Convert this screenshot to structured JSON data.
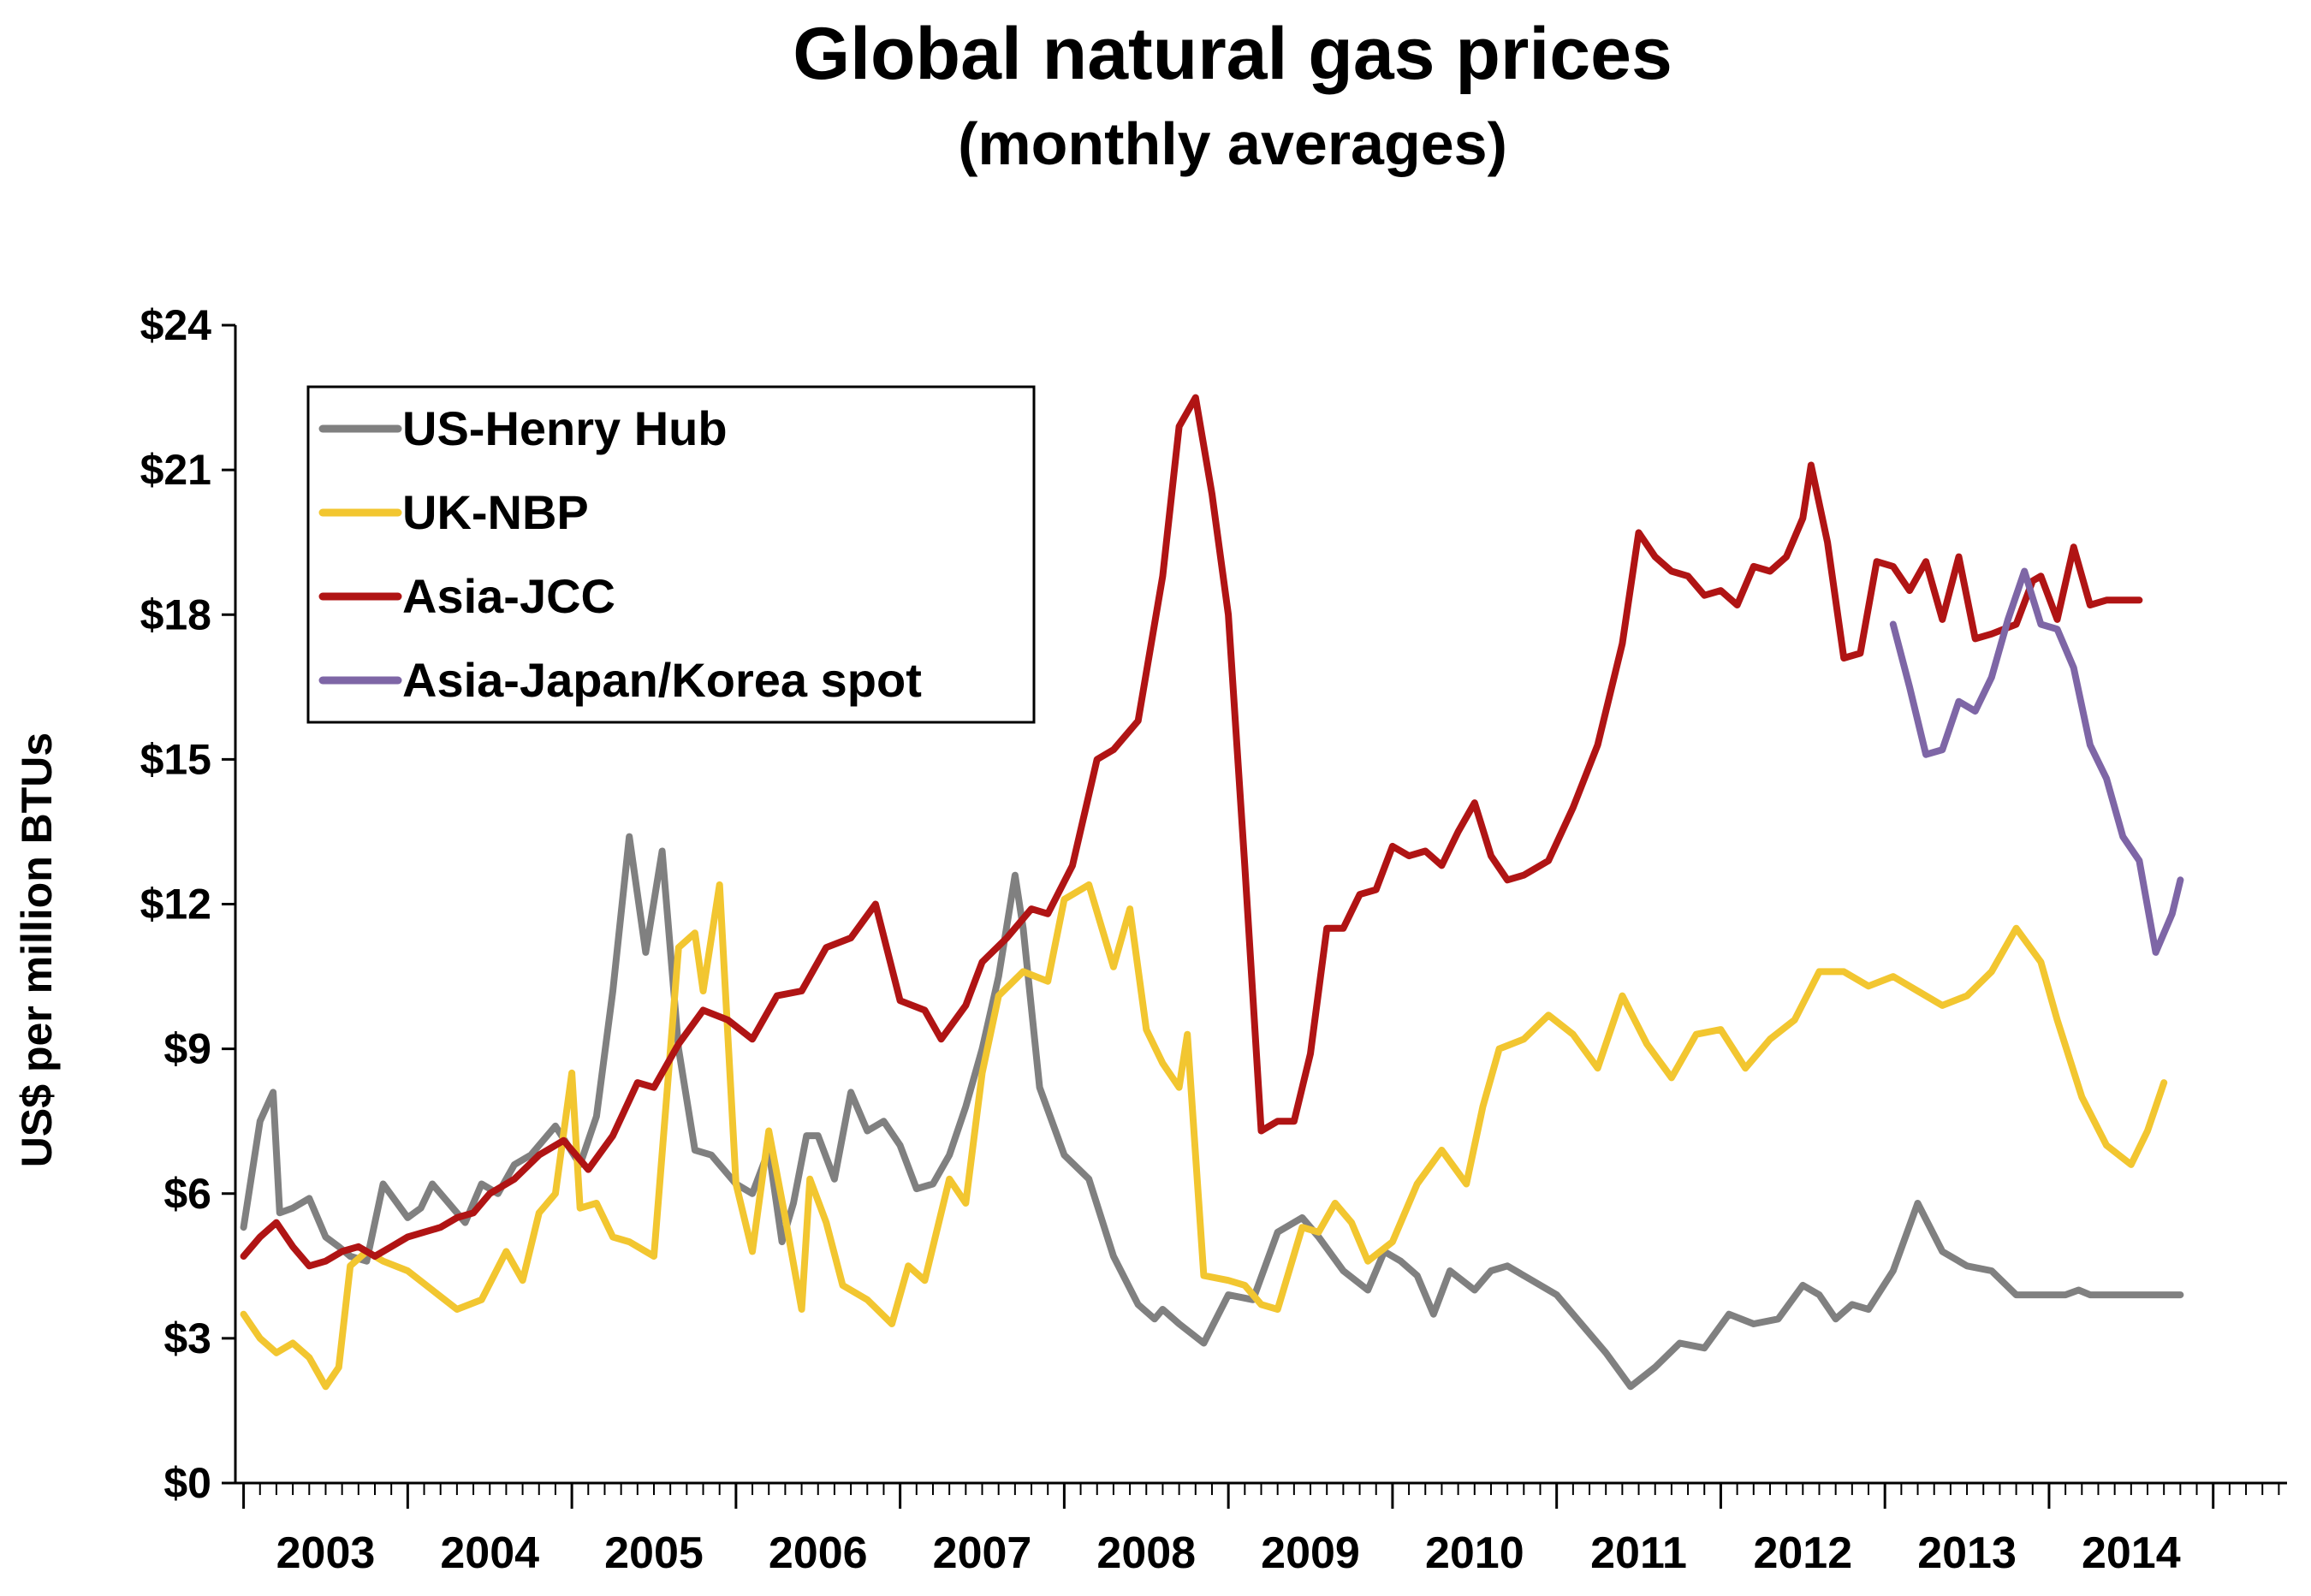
{
  "chart_data": {
    "type": "line",
    "title": "Global natural gas prices",
    "subtitle": "(monthly averages)",
    "xlabel": "",
    "ylabel": "US$ per million BTUs",
    "ylim": [
      0,
      24
    ],
    "yticks": [
      0,
      3,
      6,
      9,
      12,
      15,
      18,
      21,
      24
    ],
    "ytick_labels": [
      "$0",
      "$3",
      "$6",
      "$9",
      "$12",
      "$15",
      "$18",
      "$21",
      "$24"
    ],
    "xlim": [
      2002.45,
      2014.95
    ],
    "xtick_labels": [
      "2003",
      "2004",
      "2005",
      "2006",
      "2007",
      "2008",
      "2009",
      "2010",
      "2011",
      "2012",
      "2013",
      "2014"
    ],
    "grid": false,
    "legend_position": "top-left",
    "series": [
      {
        "name": "US-Henry Hub",
        "color": "#808080",
        "x": [
          2002.5,
          2002.6,
          2002.68,
          2002.72,
          2002.8,
          2002.9,
          2003.0,
          2003.08,
          2003.15,
          2003.25,
          2003.35,
          2003.5,
          2003.58,
          2003.65,
          2003.75,
          2003.85,
          2003.95,
          2004.05,
          2004.15,
          2004.25,
          2004.4,
          2004.55,
          2004.65,
          2004.75,
          2004.85,
          2004.95,
          2005.05,
          2005.15,
          2005.25,
          2005.35,
          2005.5,
          2005.6,
          2005.7,
          2005.78,
          2005.85,
          2005.93,
          2006.0,
          2006.1,
          2006.2,
          2006.3,
          2006.4,
          2006.5,
          2006.6,
          2006.7,
          2006.8,
          2006.9,
          2007.0,
          2007.1,
          2007.2,
          2007.25,
          2007.35,
          2007.5,
          2007.65,
          2007.8,
          2007.95,
          2008.05,
          2008.1,
          2008.2,
          2008.35,
          2008.5,
          2008.65,
          2008.8,
          2008.95,
          2009.05,
          2009.2,
          2009.35,
          2009.45,
          2009.55,
          2009.65,
          2009.75,
          2009.85,
          2010.0,
          2010.1,
          2010.2,
          2010.35,
          2010.5,
          2010.65,
          2010.8,
          2010.95,
          2011.1,
          2011.25,
          2011.4,
          2011.55,
          2011.7,
          2011.85,
          2012.0,
          2012.1,
          2012.2,
          2012.3,
          2012.4,
          2012.55,
          2012.7,
          2012.85,
          2013.0,
          2013.15,
          2013.3,
          2013.45,
          2013.6,
          2013.68,
          2013.75,
          2013.85,
          2014.0,
          2014.1,
          2014.2,
          2014.3
        ],
        "values": [
          5.3,
          7.5,
          8.1,
          5.6,
          5.7,
          5.9,
          5.1,
          4.9,
          4.7,
          4.6,
          6.2,
          5.5,
          5.7,
          6.2,
          5.8,
          5.4,
          6.2,
          6.0,
          6.6,
          6.8,
          7.4,
          6.6,
          7.6,
          10.2,
          13.4,
          11.0,
          13.1,
          9.0,
          6.9,
          6.8,
          6.2,
          6.0,
          6.9,
          5.0,
          5.8,
          7.2,
          7.2,
          6.3,
          8.1,
          7.3,
          7.5,
          7.0,
          6.1,
          6.2,
          6.8,
          7.8,
          9.0,
          10.5,
          12.6,
          11.5,
          8.2,
          6.8,
          6.3,
          4.7,
          3.7,
          3.4,
          3.6,
          3.3,
          2.9,
          3.9,
          3.8,
          5.2,
          5.5,
          5.1,
          4.4,
          4.0,
          4.8,
          4.6,
          4.3,
          3.5,
          4.4,
          4.0,
          4.4,
          4.5,
          4.2,
          3.9,
          3.3,
          2.7,
          2.0,
          2.4,
          2.9,
          2.8,
          3.5,
          3.3,
          3.4,
          4.1,
          3.9,
          3.4,
          3.7,
          3.6,
          4.4,
          5.8,
          4.8,
          4.5,
          4.4,
          3.9,
          3.9,
          3.9,
          4.0,
          3.9,
          3.9,
          3.9,
          3.9,
          3.9,
          3.9
        ]
      },
      {
        "name": "UK-NBP",
        "color": "#f2c630",
        "x": [
          2002.5,
          2002.6,
          2002.7,
          2002.8,
          2002.9,
          2003.0,
          2003.08,
          2003.15,
          2003.25,
          2003.35,
          2003.5,
          2003.65,
          2003.8,
          2003.95,
          2004.1,
          2004.2,
          2004.3,
          2004.4,
          2004.5,
          2004.55,
          2004.65,
          2004.75,
          2004.85,
          2005.0,
          2005.15,
          2005.25,
          2005.3,
          2005.4,
          2005.5,
          2005.6,
          2005.7,
          2005.8,
          2005.9,
          2005.95,
          2006.05,
          2006.15,
          2006.3,
          2006.45,
          2006.55,
          2006.65,
          2006.8,
          2006.9,
          2007.0,
          2007.1,
          2007.25,
          2007.4,
          2007.5,
          2007.65,
          2007.8,
          2007.9,
          2008.0,
          2008.1,
          2008.2,
          2008.25,
          2008.35,
          2008.5,
          2008.6,
          2008.7,
          2008.8,
          2008.95,
          2009.05,
          2009.15,
          2009.25,
          2009.35,
          2009.5,
          2009.65,
          2009.8,
          2009.95,
          2010.05,
          2010.15,
          2010.3,
          2010.45,
          2010.6,
          2010.75,
          2010.9,
          2011.05,
          2011.2,
          2011.35,
          2011.5,
          2011.65,
          2011.8,
          2011.95,
          2012.1,
          2012.25,
          2012.4,
          2012.55,
          2012.7,
          2012.85,
          2013.0,
          2013.15,
          2013.3,
          2013.45,
          2013.55,
          2013.7,
          2013.85,
          2014.0,
          2014.1,
          2014.2
        ],
        "values": [
          3.5,
          3.0,
          2.7,
          2.9,
          2.6,
          2.0,
          2.4,
          4.5,
          4.8,
          4.6,
          4.4,
          4.0,
          3.6,
          3.8,
          4.8,
          4.2,
          5.6,
          6.0,
          8.5,
          5.7,
          5.8,
          5.1,
          5.0,
          4.7,
          11.1,
          11.4,
          10.2,
          12.4,
          6.2,
          4.8,
          7.3,
          5.5,
          3.6,
          6.3,
          5.4,
          4.1,
          3.8,
          3.3,
          4.5,
          4.2,
          6.3,
          5.8,
          8.5,
          10.1,
          10.6,
          10.4,
          12.1,
          12.4,
          10.7,
          11.9,
          9.4,
          8.7,
          8.2,
          9.3,
          4.3,
          4.2,
          4.1,
          3.7,
          3.6,
          5.3,
          5.2,
          5.8,
          5.4,
          4.6,
          5.0,
          6.2,
          6.9,
          6.2,
          7.8,
          9.0,
          9.2,
          9.7,
          9.3,
          8.6,
          10.1,
          9.1,
          8.4,
          9.3,
          9.4,
          8.6,
          9.2,
          9.6,
          10.6,
          10.6,
          10.3,
          10.5,
          10.2,
          9.9,
          10.1,
          10.6,
          11.5,
          10.8,
          9.6,
          8.0,
          7.0,
          6.6,
          7.3,
          8.3
        ]
      },
      {
        "name": "Asia-JCC",
        "color": "#b01414",
        "x": [
          2002.5,
          2002.6,
          2002.7,
          2002.8,
          2002.9,
          2003.0,
          2003.1,
          2003.2,
          2003.3,
          2003.4,
          2003.5,
          2003.6,
          2003.7,
          2003.8,
          2003.9,
          2004.0,
          2004.15,
          2004.3,
          2004.45,
          2004.6,
          2004.75,
          2004.9,
          2005.0,
          2005.15,
          2005.3,
          2005.45,
          2005.6,
          2005.75,
          2005.9,
          2006.05,
          2006.2,
          2006.35,
          2006.5,
          2006.65,
          2006.75,
          2006.9,
          2007.0,
          2007.15,
          2007.3,
          2007.4,
          2007.55,
          2007.7,
          2007.8,
          2007.95,
          2008.1,
          2008.2,
          2008.3,
          2008.4,
          2008.5,
          2008.6,
          2008.7,
          2008.8,
          2008.9,
          2009.0,
          2009.1,
          2009.2,
          2009.3,
          2009.4,
          2009.5,
          2009.6,
          2009.7,
          2009.8,
          2009.9,
          2010.0,
          2010.1,
          2010.2,
          2010.3,
          2010.45,
          2010.6,
          2010.75,
          2010.9,
          2011.0,
          2011.1,
          2011.2,
          2011.3,
          2011.4,
          2011.5,
          2011.6,
          2011.7,
          2011.8,
          2011.9,
          2012.0,
          2012.05,
          2012.15,
          2012.25,
          2012.35,
          2012.45,
          2012.55,
          2012.65,
          2012.75,
          2012.85,
          2012.95,
          2013.05,
          2013.15,
          2013.3,
          2013.4,
          2013.45,
          2013.55,
          2013.65,
          2013.75,
          2013.85,
          2013.95,
          2014.05
        ],
        "values": [
          4.7,
          5.1,
          5.4,
          4.9,
          4.5,
          4.6,
          4.8,
          4.9,
          4.7,
          4.9,
          5.1,
          5.2,
          5.3,
          5.5,
          5.6,
          6.0,
          6.3,
          6.8,
          7.1,
          6.5,
          7.2,
          8.3,
          8.2,
          9.1,
          9.8,
          9.6,
          9.2,
          10.1,
          10.2,
          11.1,
          11.3,
          12.0,
          10.0,
          9.8,
          9.2,
          9.9,
          10.8,
          11.3,
          11.9,
          11.8,
          12.8,
          15.0,
          15.2,
          15.8,
          18.8,
          21.9,
          22.5,
          20.5,
          18.0,
          12.8,
          7.3,
          7.5,
          7.5,
          8.9,
          11.5,
          11.5,
          12.2,
          12.3,
          13.2,
          13.0,
          13.1,
          12.8,
          13.5,
          14.1,
          13.0,
          12.5,
          12.6,
          12.9,
          14.0,
          15.3,
          17.4,
          19.7,
          19.2,
          18.9,
          18.8,
          18.4,
          18.5,
          18.2,
          19.0,
          18.9,
          19.2,
          20.0,
          21.1,
          19.5,
          17.1,
          17.2,
          19.1,
          19.0,
          18.5,
          19.1,
          17.9,
          19.2,
          17.5,
          17.6,
          17.8,
          18.7,
          18.8,
          17.9,
          19.4,
          18.2,
          18.3,
          18.3,
          18.3
        ]
      },
      {
        "name": "Asia-Japan/Korea spot",
        "color": "#7e66a6",
        "x": [
          2012.55,
          2012.65,
          2012.75,
          2012.85,
          2012.95,
          2013.05,
          2013.15,
          2013.25,
          2013.35,
          2013.45,
          2013.55,
          2013.65,
          2013.75,
          2013.85,
          2013.95,
          2014.05,
          2014.15,
          2014.25,
          2014.3
        ],
        "values": [
          17.8,
          16.5,
          15.1,
          15.2,
          16.2,
          16.0,
          16.7,
          17.9,
          18.9,
          17.8,
          17.7,
          16.9,
          15.3,
          14.6,
          13.4,
          12.9,
          11.0,
          11.8,
          12.5
        ]
      }
    ]
  }
}
